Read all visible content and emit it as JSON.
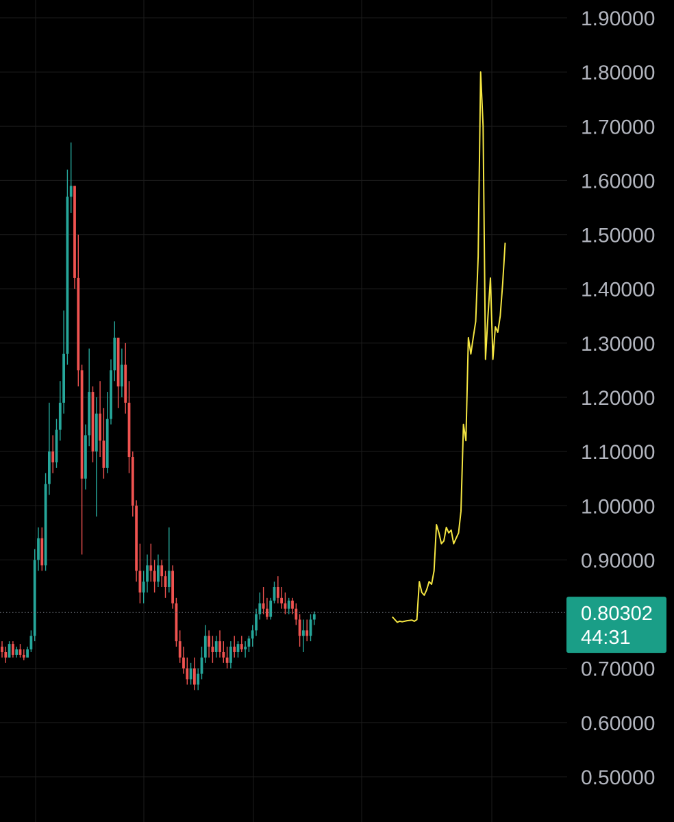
{
  "chart_data": {
    "type": "candlestick",
    "ylim": [
      0.45,
      1.95
    ],
    "grid": true,
    "y_ticks": [
      "1.90000",
      "1.80000",
      "1.70000",
      "1.60000",
      "1.50000",
      "1.40000",
      "1.30000",
      "1.20000",
      "1.10000",
      "1.00000",
      "0.90000",
      "0.70000",
      "0.60000",
      "0.50000"
    ],
    "current_price": {
      "value": "0.80302",
      "countdown": "44:31",
      "price": 0.80302
    },
    "colors": {
      "up": "#26a69a",
      "down": "#ef5350",
      "projection": "#f5e642",
      "badge": "#1a9e87",
      "grid": "#1c1c1c",
      "background": "#000000"
    },
    "candles": [
      [
        0.74,
        0.75,
        0.72,
        0.73
      ],
      [
        0.73,
        0.74,
        0.71,
        0.72
      ],
      [
        0.72,
        0.75,
        0.72,
        0.745
      ],
      [
        0.745,
        0.75,
        0.72,
        0.725
      ],
      [
        0.725,
        0.74,
        0.72,
        0.735
      ],
      [
        0.735,
        0.745,
        0.72,
        0.725
      ],
      [
        0.725,
        0.735,
        0.715,
        0.72
      ],
      [
        0.72,
        0.74,
        0.72,
        0.735
      ],
      [
        0.735,
        0.77,
        0.73,
        0.76
      ],
      [
        0.76,
        0.92,
        0.75,
        0.9
      ],
      [
        0.9,
        0.96,
        0.88,
        0.94
      ],
      [
        0.94,
        0.96,
        0.88,
        0.89
      ],
      [
        0.89,
        1.06,
        0.88,
        1.04
      ],
      [
        1.04,
        1.19,
        1.02,
        1.1
      ],
      [
        1.1,
        1.13,
        1.06,
        1.08
      ],
      [
        1.08,
        1.16,
        1.07,
        1.14
      ],
      [
        1.14,
        1.23,
        1.12,
        1.19
      ],
      [
        1.19,
        1.36,
        1.17,
        1.28
      ],
      [
        1.28,
        1.62,
        1.26,
        1.57
      ],
      [
        1.57,
        1.67,
        1.54,
        1.59
      ],
      [
        1.59,
        1.59,
        1.4,
        1.42
      ],
      [
        1.42,
        1.5,
        1.22,
        1.25
      ],
      [
        1.25,
        1.26,
        0.91,
        1.05
      ],
      [
        1.05,
        1.15,
        1.03,
        1.13
      ],
      [
        1.13,
        1.29,
        1.11,
        1.21
      ],
      [
        1.21,
        1.22,
        1.08,
        1.1
      ],
      [
        1.1,
        1.2,
        0.98,
        1.17
      ],
      [
        1.17,
        1.23,
        1.09,
        1.12
      ],
      [
        1.12,
        1.18,
        1.05,
        1.07
      ],
      [
        1.07,
        1.21,
        1.06,
        1.16
      ],
      [
        1.16,
        1.27,
        1.15,
        1.25
      ],
      [
        1.25,
        1.34,
        1.23,
        1.31
      ],
      [
        1.31,
        1.31,
        1.18,
        1.22
      ],
      [
        1.22,
        1.29,
        1.2,
        1.26
      ],
      [
        1.26,
        1.3,
        1.17,
        1.19
      ],
      [
        1.19,
        1.23,
        1.06,
        1.09
      ],
      [
        1.09,
        1.1,
        0.98,
        1.0
      ],
      [
        1.0,
        1.01,
        0.86,
        0.88
      ],
      [
        0.88,
        0.93,
        0.82,
        0.84
      ],
      [
        0.84,
        0.88,
        0.82,
        0.86
      ],
      [
        0.86,
        0.91,
        0.84,
        0.89
      ],
      [
        0.89,
        0.93,
        0.86,
        0.88
      ],
      [
        0.88,
        0.9,
        0.84,
        0.86
      ],
      [
        0.86,
        0.91,
        0.85,
        0.89
      ],
      [
        0.89,
        0.9,
        0.85,
        0.87
      ],
      [
        0.87,
        0.88,
        0.83,
        0.85
      ],
      [
        0.85,
        0.96,
        0.84,
        0.88
      ],
      [
        0.88,
        0.89,
        0.81,
        0.82
      ],
      [
        0.82,
        0.83,
        0.74,
        0.75
      ],
      [
        0.75,
        0.77,
        0.71,
        0.72
      ],
      [
        0.72,
        0.74,
        0.69,
        0.7
      ],
      [
        0.7,
        0.72,
        0.67,
        0.68
      ],
      [
        0.68,
        0.71,
        0.67,
        0.7
      ],
      [
        0.7,
        0.72,
        0.66,
        0.67
      ],
      [
        0.67,
        0.7,
        0.66,
        0.69
      ],
      [
        0.69,
        0.74,
        0.68,
        0.72
      ],
      [
        0.72,
        0.78,
        0.71,
        0.76
      ],
      [
        0.76,
        0.77,
        0.72,
        0.74
      ],
      [
        0.74,
        0.76,
        0.71,
        0.73
      ],
      [
        0.73,
        0.76,
        0.72,
        0.75
      ],
      [
        0.75,
        0.77,
        0.72,
        0.73
      ],
      [
        0.73,
        0.75,
        0.71,
        0.72
      ],
      [
        0.72,
        0.74,
        0.7,
        0.71
      ],
      [
        0.71,
        0.75,
        0.7,
        0.74
      ],
      [
        0.74,
        0.76,
        0.72,
        0.73
      ],
      [
        0.73,
        0.75,
        0.72,
        0.745
      ],
      [
        0.745,
        0.76,
        0.73,
        0.735
      ],
      [
        0.735,
        0.75,
        0.72,
        0.74
      ],
      [
        0.74,
        0.76,
        0.73,
        0.755
      ],
      [
        0.755,
        0.78,
        0.74,
        0.77
      ],
      [
        0.77,
        0.81,
        0.76,
        0.8
      ],
      [
        0.8,
        0.84,
        0.79,
        0.82
      ],
      [
        0.82,
        0.85,
        0.8,
        0.81
      ],
      [
        0.81,
        0.83,
        0.79,
        0.795
      ],
      [
        0.795,
        0.83,
        0.79,
        0.825
      ],
      [
        0.825,
        0.86,
        0.82,
        0.85
      ],
      [
        0.85,
        0.87,
        0.82,
        0.83
      ],
      [
        0.83,
        0.85,
        0.81,
        0.82
      ],
      [
        0.82,
        0.84,
        0.8,
        0.81
      ],
      [
        0.81,
        0.83,
        0.8,
        0.825
      ],
      [
        0.825,
        0.83,
        0.8,
        0.81
      ],
      [
        0.81,
        0.82,
        0.78,
        0.79
      ],
      [
        0.79,
        0.8,
        0.74,
        0.76
      ],
      [
        0.76,
        0.79,
        0.73,
        0.77
      ],
      [
        0.77,
        0.79,
        0.75,
        0.76
      ],
      [
        0.76,
        0.8,
        0.75,
        0.79
      ],
      [
        0.79,
        0.805,
        0.78,
        0.8
      ]
    ],
    "projection": [
      [
        0.8,
        0.795
      ],
      [
        0.805,
        0.79
      ],
      [
        0.81,
        0.785
      ],
      [
        0.815,
        0.787
      ],
      [
        0.82,
        0.786
      ],
      [
        0.83,
        0.788
      ],
      [
        0.84,
        0.789
      ],
      [
        0.845,
        0.787
      ],
      [
        0.85,
        0.79
      ],
      [
        0.855,
        0.86
      ],
      [
        0.86,
        0.84
      ],
      [
        0.865,
        0.835
      ],
      [
        0.87,
        0.845
      ],
      [
        0.875,
        0.86
      ],
      [
        0.88,
        0.855
      ],
      [
        0.885,
        0.88
      ],
      [
        0.89,
        0.965
      ],
      [
        0.895,
        0.95
      ],
      [
        0.9,
        0.93
      ],
      [
        0.905,
        0.935
      ],
      [
        0.91,
        0.96
      ],
      [
        0.915,
        0.95
      ],
      [
        0.92,
        0.955
      ],
      [
        0.925,
        0.93
      ],
      [
        0.93,
        0.94
      ],
      [
        0.935,
        0.95
      ],
      [
        0.94,
        0.99
      ],
      [
        0.945,
        1.15
      ],
      [
        0.95,
        1.12
      ],
      [
        0.955,
        1.31
      ],
      [
        0.96,
        1.28
      ],
      [
        0.965,
        1.31
      ],
      [
        0.97,
        1.34
      ],
      [
        0.975,
        1.46
      ],
      [
        0.98,
        1.8
      ],
      [
        0.985,
        1.7
      ],
      [
        0.99,
        1.27
      ],
      [
        0.995,
        1.35
      ],
      [
        1.0,
        1.42
      ],
      [
        1.005,
        1.27
      ],
      [
        1.01,
        1.33
      ],
      [
        1.015,
        1.32
      ],
      [
        1.02,
        1.35
      ],
      [
        1.025,
        1.41
      ],
      [
        1.03,
        1.485
      ]
    ]
  }
}
